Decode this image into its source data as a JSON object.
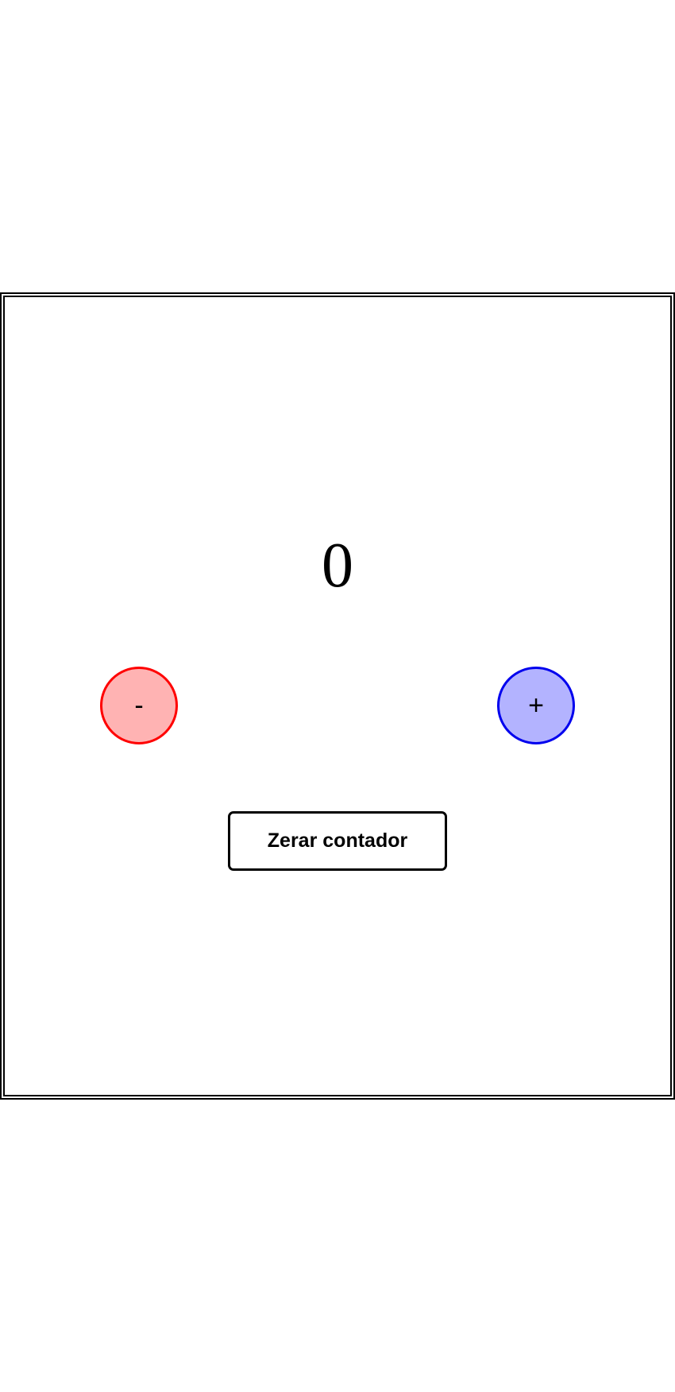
{
  "counter": {
    "value": "0",
    "decrement_label": "-",
    "increment_label": "+",
    "reset_label": "Zerar contador"
  },
  "colors": {
    "decrement_fill": "#ffb3b3",
    "decrement_border": "#ff0000",
    "increment_fill": "#b3b3ff",
    "increment_border": "#0000ee",
    "frame_border": "#000000"
  }
}
